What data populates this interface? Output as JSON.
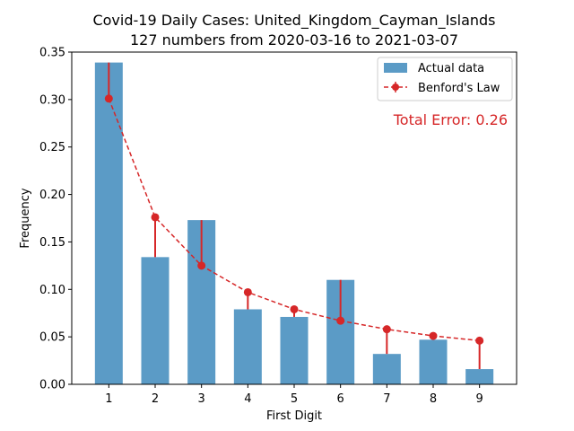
{
  "chart_data": {
    "type": "bar",
    "title_line1": "Covid-19 Daily Cases: United_Kingdom_Cayman_Islands",
    "title_line2": "127 numbers from 2020-03-16 to 2021-03-07",
    "xlabel": "First Digit",
    "ylabel": "Frequency",
    "categories": [
      "1",
      "2",
      "3",
      "4",
      "5",
      "6",
      "7",
      "8",
      "9"
    ],
    "series": [
      {
        "name": "Actual data",
        "kind": "bar",
        "color": "#5b9bc6",
        "values": [
          0.339,
          0.134,
          0.173,
          0.079,
          0.071,
          0.11,
          0.032,
          0.047,
          0.016
        ]
      },
      {
        "name": "Benford's Law",
        "kind": "line",
        "color": "#d62728",
        "values": [
          0.301,
          0.176,
          0.125,
          0.097,
          0.079,
          0.067,
          0.058,
          0.051,
          0.046
        ]
      }
    ],
    "ylim": [
      0,
      0.35
    ],
    "yticks": [
      "0.00",
      "0.05",
      "0.10",
      "0.15",
      "0.20",
      "0.25",
      "0.30",
      "0.35"
    ],
    "legend_position": "top-right",
    "annotation": "Total Error: 0.26",
    "annotation_color": "#d62728",
    "grid": false
  }
}
